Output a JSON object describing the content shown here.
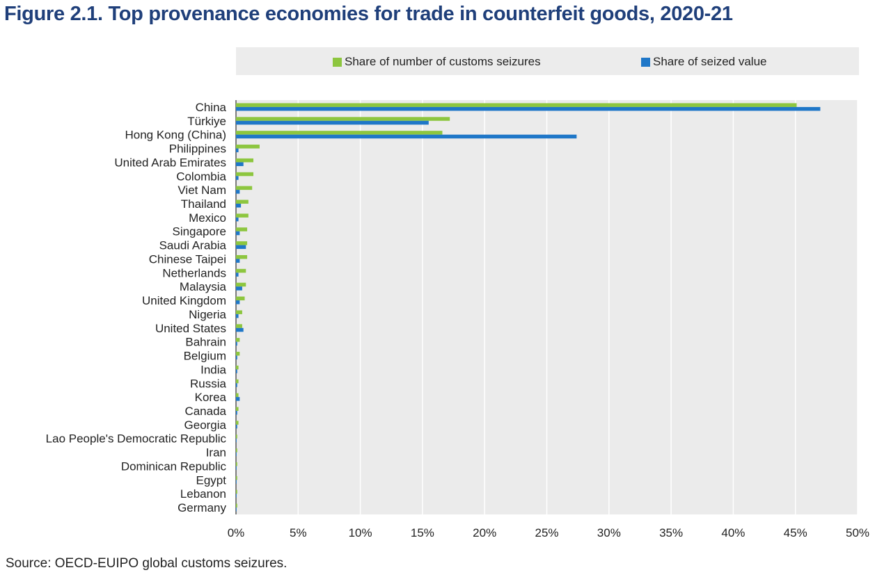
{
  "title": "Figure 2.1. Top provenance economies for trade in counterfeit goods, 2020-21",
  "source": "Source: OECD-EUIPO global customs seizures.",
  "colors": {
    "green": "#8dc63f",
    "blue": "#1f77c8",
    "plot_bg": "#ebebeb",
    "legend_bg": "#ececec",
    "title": "#1f3f7a"
  },
  "chart_data": {
    "type": "bar",
    "orientation": "horizontal",
    "title": "Figure 2.1. Top provenance economies for trade in counterfeit goods, 2020-21",
    "xlabel": "",
    "ylabel": "",
    "xlim": [
      0,
      50
    ],
    "xticks": [
      0,
      5,
      10,
      15,
      20,
      25,
      30,
      35,
      40,
      45,
      50
    ],
    "xtick_labels": [
      "0%",
      "5%",
      "10%",
      "15%",
      "20%",
      "25%",
      "30%",
      "35%",
      "40%",
      "45%",
      "50%"
    ],
    "legend_position": "top",
    "grid": true,
    "categories": [
      "China",
      "Türkiye",
      "Hong Kong (China)",
      "Philippines",
      "United Arab Emirates",
      "Colombia",
      "Viet Nam",
      "Thailand",
      "Mexico",
      "Singapore",
      "Saudi Arabia",
      "Chinese Taipei",
      "Netherlands",
      "Malaysia",
      "United Kingdom",
      "Nigeria",
      "United States",
      "Bahrain",
      "Belgium",
      "India",
      "Russia",
      "Korea",
      "Canada",
      "Georgia",
      "Lao People's Democratic Republic",
      "Iran",
      "Dominican Republic",
      "Egypt",
      "Lebanon",
      "Germany"
    ],
    "series": [
      {
        "name": "Share of number of customs seizures",
        "color": "#8dc63f",
        "values": [
          45.1,
          17.2,
          16.6,
          1.9,
          1.4,
          1.4,
          1.3,
          1.0,
          1.0,
          0.9,
          0.9,
          0.9,
          0.8,
          0.8,
          0.7,
          0.5,
          0.5,
          0.3,
          0.3,
          0.2,
          0.2,
          0.2,
          0.2,
          0.2,
          0.1,
          0.1,
          0.1,
          0.1,
          0.1,
          0.1
        ]
      },
      {
        "name": "Share of seized value",
        "color": "#1f77c8",
        "values": [
          47.0,
          15.5,
          27.4,
          0.2,
          0.6,
          0.2,
          0.3,
          0.4,
          0.2,
          0.3,
          0.8,
          0.3,
          0.2,
          0.5,
          0.3,
          0.2,
          0.6,
          0.1,
          0.1,
          0.1,
          0.1,
          0.3,
          0.1,
          0.1,
          0.05,
          0.05,
          0.05,
          0.05,
          0.05,
          0.05
        ]
      }
    ]
  }
}
